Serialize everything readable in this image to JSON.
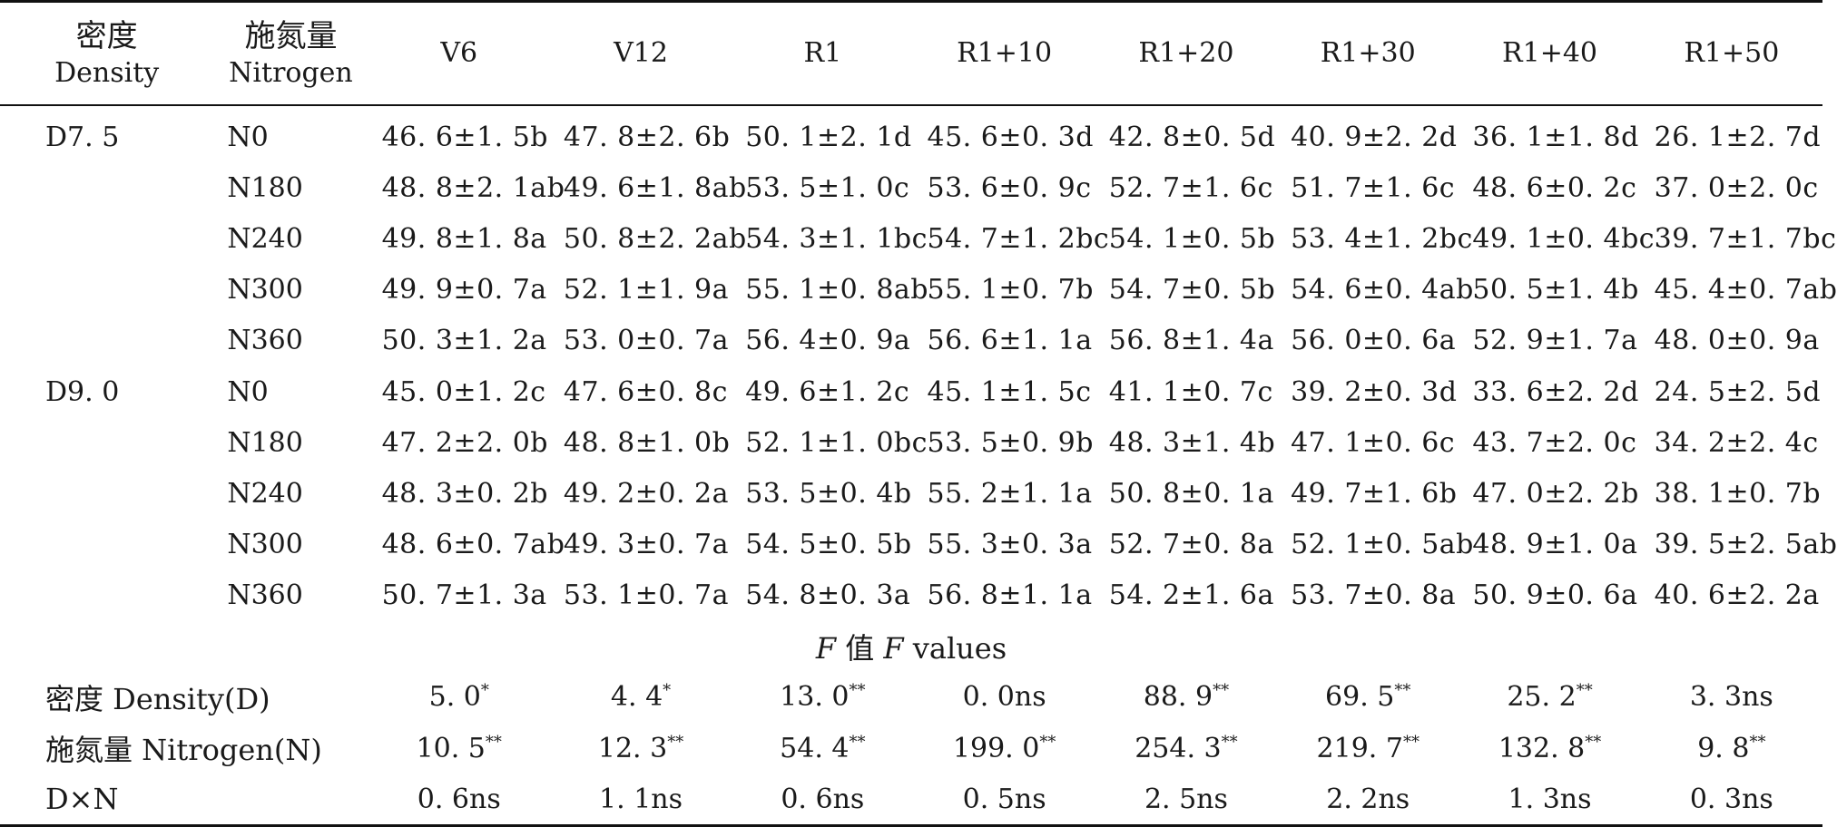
{
  "header": {
    "density_zh": "密度",
    "density_en": "Density",
    "nitrogen_zh": "施氮量",
    "nitrogen_en": "Nitrogen",
    "stages": [
      "V6",
      "V12",
      "R1",
      "R1+10",
      "R1+20",
      "R1+30",
      "R1+40",
      "R1+50"
    ]
  },
  "rows": [
    {
      "density": "D7. 5",
      "nitrogen": "N0",
      "values": [
        "46. 6±1. 5b",
        "47. 8±2. 6b",
        "50. 1±2. 1d",
        "45. 6±0. 3d",
        "42. 8±0. 5d",
        "40. 9±2. 2d",
        "36. 1±1. 8d",
        "26. 1±2. 7d"
      ]
    },
    {
      "density": "",
      "nitrogen": "N180",
      "values": [
        "48. 8±2. 1ab",
        "49. 6±1. 8ab",
        "53. 5±1. 0c",
        "53. 6±0. 9c",
        "52. 7±1. 6c",
        "51. 7±1. 6c",
        "48. 6±0. 2c",
        "37. 0±2. 0c"
      ]
    },
    {
      "density": "",
      "nitrogen": "N240",
      "values": [
        "49. 8±1. 8a",
        "50. 8±2. 2ab",
        "54. 3±1. 1bc",
        "54. 7±1. 2bc",
        "54. 1±0. 5b",
        "53. 4±1. 2bc",
        "49. 1±0. 4bc",
        "39. 7±1. 7bc"
      ]
    },
    {
      "density": "",
      "nitrogen": "N300",
      "values": [
        "49. 9±0. 7a",
        "52. 1±1. 9a",
        "55. 1±0. 8ab",
        "55. 1±0. 7b",
        "54. 7±0. 5b",
        "54. 6±0. 4ab",
        "50. 5±1. 4b",
        "45. 4±0. 7ab"
      ]
    },
    {
      "density": "",
      "nitrogen": "N360",
      "values": [
        "50. 3±1. 2a",
        "53. 0±0. 7a",
        "56. 4±0. 9a",
        "56. 6±1. 1a",
        "56. 8±1. 4a",
        "56. 0±0. 6a",
        "52. 9±1. 7a",
        "48. 0±0. 9a"
      ]
    },
    {
      "density": "D9. 0",
      "nitrogen": "N0",
      "values": [
        "45. 0±1. 2c",
        "47. 6±0. 8c",
        "49. 6±1. 2c",
        "45. 1±1. 5c",
        "41. 1±0. 7c",
        "39. 2±0. 3d",
        "33. 6±2. 2d",
        "24. 5±2. 5d"
      ]
    },
    {
      "density": "",
      "nitrogen": "N180",
      "values": [
        "47. 2±2. 0b",
        "48. 8±1. 0b",
        "52. 1±1. 0bc",
        "53. 5±0. 9b",
        "48. 3±1. 4b",
        "47. 1±0. 6c",
        "43. 7±2. 0c",
        "34. 2±2. 4c"
      ]
    },
    {
      "density": "",
      "nitrogen": "N240",
      "values": [
        "48. 3±0. 2b",
        "49. 2±0. 2a",
        "53. 5±0. 4b",
        "55. 2±1. 1a",
        "50. 8±0. 1a",
        "49. 7±1. 6b",
        "47. 0±2. 2b",
        "38. 1±0. 7b"
      ]
    },
    {
      "density": "",
      "nitrogen": "N300",
      "values": [
        "48. 6±0. 7ab",
        "49. 3±0. 7a",
        "54. 5±0. 5b",
        "55. 3±0. 3a",
        "52. 7±0. 8a",
        "52. 1±0. 5ab",
        "48. 9±1. 0a",
        "39. 5±2. 5ab"
      ]
    },
    {
      "density": "",
      "nitrogen": "N360",
      "values": [
        "50. 7±1. 3a",
        "53. 1±0. 7a",
        "54. 8±0. 3a",
        "56. 8±1. 1a",
        "54. 2±1. 6a",
        "53. 7±0. 8a",
        "50. 9±0. 6a",
        "40. 6±2. 2a"
      ]
    }
  ],
  "f_section": {
    "f1": "F",
    "mid": " 值 ",
    "f2": "F",
    "tail": " values"
  },
  "f_rows": [
    {
      "label": "密度 Density(D)",
      "values": [
        {
          "v": "5. 0",
          "s": "*"
        },
        {
          "v": "4. 4",
          "s": "*"
        },
        {
          "v": "13. 0",
          "s": "**"
        },
        {
          "v": "0. 0ns",
          "s": ""
        },
        {
          "v": "88. 9",
          "s": "**"
        },
        {
          "v": "69. 5",
          "s": "**"
        },
        {
          "v": "25. 2",
          "s": "**"
        },
        {
          "v": "3. 3ns",
          "s": ""
        }
      ]
    },
    {
      "label": "施氮量 Nitrogen(N)",
      "values": [
        {
          "v": "10. 5",
          "s": "**"
        },
        {
          "v": "12. 3",
          "s": "**"
        },
        {
          "v": "54. 4",
          "s": "**"
        },
        {
          "v": "199. 0",
          "s": "**"
        },
        {
          "v": "254. 3",
          "s": "**"
        },
        {
          "v": "219. 7",
          "s": "**"
        },
        {
          "v": "132. 8",
          "s": "**"
        },
        {
          "v": "9. 8",
          "s": "**"
        }
      ]
    },
    {
      "label": "D×N",
      "values": [
        {
          "v": "0. 6ns",
          "s": ""
        },
        {
          "v": "1. 1ns",
          "s": ""
        },
        {
          "v": "0. 6ns",
          "s": ""
        },
        {
          "v": "0. 5ns",
          "s": ""
        },
        {
          "v": "2. 5ns",
          "s": ""
        },
        {
          "v": "2. 2ns",
          "s": ""
        },
        {
          "v": "1. 3ns",
          "s": ""
        },
        {
          "v": "0. 3ns",
          "s": ""
        }
      ]
    }
  ]
}
